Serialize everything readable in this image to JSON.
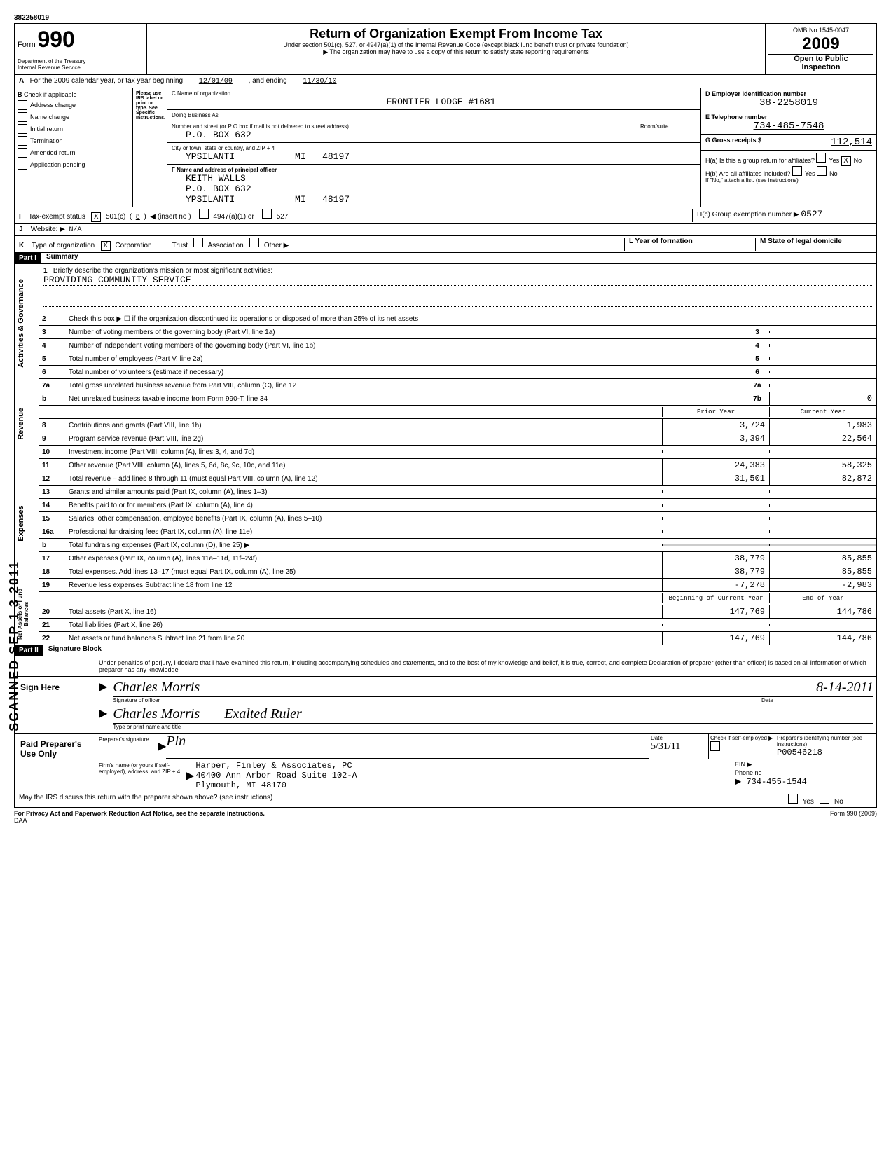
{
  "header": {
    "doc_id": "382258019",
    "form_prefix": "Form",
    "form_number": "990",
    "dept": "Department of the Treasury",
    "irs": "Internal Revenue Service",
    "title": "Return of Organization Exempt From Income Tax",
    "subtitle1": "Under section 501(c), 527, or 4947(a)(1) of the Internal Revenue Code (except black lung benefit trust or private foundation)",
    "subtitle2": "▶ The organization may have to use a copy of this return to satisfy state reporting requirements",
    "omb": "OMB No  1545-0047",
    "year": "2009",
    "open": "Open to Public",
    "inspection": "Inspection"
  },
  "row_a": {
    "label": "For the 2009 calendar year, or tax year beginning",
    "begin": "12/01/09",
    "mid": ", and ending",
    "end": "11/30/10"
  },
  "section_b": {
    "header": "Check if applicable",
    "please": "Please use IRS label or print or type. See Specific Instructions.",
    "items": [
      {
        "label": "Address change",
        "checked": false
      },
      {
        "label": "Name change",
        "checked": false
      },
      {
        "label": "Initial return",
        "checked": false
      },
      {
        "label": "Termination",
        "checked": false
      },
      {
        "label": "Amended return",
        "checked": false
      },
      {
        "label": "Application pending",
        "checked": false
      }
    ]
  },
  "section_c": {
    "name_label": "C  Name of organization",
    "name": "FRONTIER LODGE #1681",
    "dba_label": "Doing Business As",
    "dba": "",
    "street_label": "Number and street (or P O  box if mail is not delivered to street address)",
    "street": "P.O. BOX 632",
    "room_label": "Room/suite",
    "city_label": "City or town, state or country, and ZIP + 4",
    "city": "YPSILANTI",
    "state": "MI",
    "zip": "48197"
  },
  "section_f": {
    "label": "F  Name and address of principal officer",
    "name": "KEITH WALLS",
    "street": "P.O. BOX 632",
    "city": "YPSILANTI",
    "state": "MI",
    "zip": "48197"
  },
  "section_d": {
    "label": "D    Employer Identification number",
    "value": "38-2258019"
  },
  "section_e": {
    "label": "E    Telephone number",
    "value": "734-485-7548"
  },
  "section_g": {
    "label": "G Gross receipts $",
    "value": "112,514"
  },
  "section_h": {
    "ha_label": "H(a)  Is this a group return for affiliates?",
    "ha_yes": false,
    "ha_no": true,
    "hb_label": "H(b)  Are all affiliates included?",
    "hb_yes": false,
    "hb_no": false,
    "hb_note": "If \"No,\" attach a list. (see instructions)",
    "hc_label": "H(c)  Group exemption number ▶",
    "hc_value": "0527"
  },
  "row_i": {
    "label": "Tax-exempt status",
    "c501_checked": true,
    "c501_num": "8",
    "insert": "◀ (insert no )",
    "opt2": "4947(a)(1) or",
    "opt3": "527"
  },
  "row_j": {
    "label": "Website: ▶",
    "value": "N/A"
  },
  "row_k": {
    "label": "Type of organization",
    "corp_checked": true,
    "options": [
      "Corporation",
      "Trust",
      "Association",
      "Other ▶"
    ]
  },
  "row_l": {
    "label": "L    Year of formation",
    "value": ""
  },
  "row_m": {
    "label": "M  State of legal domicile",
    "value": ""
  },
  "part1": {
    "header": "Part I",
    "title": "Summary",
    "mission_label": "Briefly describe the organization's mission or most significant activities:",
    "mission": "PROVIDING COMMUNITY SERVICE",
    "line2": "Check this box ▶ ☐  if the organization discontinued its operations or disposed of more than 25% of its net assets",
    "governance_label": "Activities & Governance",
    "revenue_label": "Revenue",
    "expenses_label": "Expenses",
    "netassets_label": "Net Assets or Fund Balances",
    "lines": [
      {
        "num": "3",
        "text": "Number of voting members of the governing body (Part VI, line 1a)",
        "box": "3",
        "prior": "",
        "current": ""
      },
      {
        "num": "4",
        "text": "Number of independent voting members of the governing body (Part VI, line 1b)",
        "box": "4",
        "prior": "",
        "current": ""
      },
      {
        "num": "5",
        "text": "Total number of employees (Part V, line 2a)",
        "box": "5",
        "prior": "",
        "current": ""
      },
      {
        "num": "6",
        "text": "Total number of volunteers (estimate if necessary)",
        "box": "6",
        "prior": "",
        "current": ""
      },
      {
        "num": "7a",
        "text": "Total gross unrelated business revenue from Part VIII, column (C), line 12",
        "box": "7a",
        "prior": "",
        "current": ""
      },
      {
        "num": "b",
        "text": "Net unrelated business taxable income from Form 990-T, line 34",
        "box": "7b",
        "prior": "",
        "current": "0"
      }
    ],
    "col_prior": "Prior Year",
    "col_current": "Current Year",
    "revenue_lines": [
      {
        "num": "8",
        "text": "Contributions and grants (Part VIII, line 1h)",
        "prior": "3,724",
        "current": "1,983"
      },
      {
        "num": "9",
        "text": "Program service revenue (Part VIII, line 2g)",
        "prior": "3,394",
        "current": "22,564"
      },
      {
        "num": "10",
        "text": "Investment income (Part VIII, column (A), lines 3, 4, and 7d)",
        "prior": "",
        "current": ""
      },
      {
        "num": "11",
        "text": "Other revenue (Part VIII, column (A), lines 5, 6d, 8c, 9c, 10c, and 11e)",
        "prior": "24,383",
        "current": "58,325"
      },
      {
        "num": "12",
        "text": "Total revenue – add lines 8 through 11 (must equal Part VIII, column (A), line 12)",
        "prior": "31,501",
        "current": "82,872"
      }
    ],
    "expense_lines": [
      {
        "num": "13",
        "text": "Grants and similar amounts paid (Part IX, column (A), lines 1–3)",
        "prior": "",
        "current": ""
      },
      {
        "num": "14",
        "text": "Benefits paid to or for members (Part IX, column (A), line 4)",
        "prior": "",
        "current": ""
      },
      {
        "num": "15",
        "text": "Salaries, other compensation, employee benefits (Part IX, column (A), lines 5–10)",
        "prior": "",
        "current": ""
      },
      {
        "num": "16a",
        "text": "Professional fundraising fees (Part IX, column (A), line 11e)",
        "prior": "",
        "current": ""
      },
      {
        "num": "b",
        "text": "Total fundraising expenses (Part IX, column (D), line 25) ▶",
        "prior": "shaded",
        "current": "shaded"
      },
      {
        "num": "17",
        "text": "Other expenses (Part IX, column (A), lines 11a–11d, 11f–24f)",
        "prior": "38,779",
        "current": "85,855"
      },
      {
        "num": "18",
        "text": "Total expenses. Add lines 13–17 (must equal Part IX, column (A), line 25)",
        "prior": "38,779",
        "current": "85,855"
      },
      {
        "num": "19",
        "text": "Revenue less expenses  Subtract line 18 from line 12",
        "prior": "-7,278",
        "current": "-2,983"
      }
    ],
    "col_begin": "Beginning of Current Year",
    "col_end": "End of Year",
    "asset_lines": [
      {
        "num": "20",
        "text": "Total assets (Part X, line 16)",
        "prior": "147,769",
        "current": "144,786"
      },
      {
        "num": "21",
        "text": "Total liabilities (Part X, line 26)",
        "prior": "",
        "current": ""
      },
      {
        "num": "22",
        "text": "Net assets or fund balances  Subtract line 21 from line 20",
        "prior": "147,769",
        "current": "144,786"
      }
    ]
  },
  "part2": {
    "header": "Part II",
    "title": "Signature Block",
    "penalty": "Under penalties of perjury, I declare that I have examined this return, including accompanying schedules and statements, and to the best of my knowledge and belief, it is true, correct, and complete  Declaration of preparer (other than officer) is based on all information of which preparer has any knowledge",
    "sign_here": "Sign Here",
    "sig_officer": "Signature of officer",
    "sig_date_label": "Date",
    "sig_date": "8-14-2011",
    "type_name": "Type or print name and title",
    "printed_name": "Charles Morris",
    "printed_title": "Exalted Ruler",
    "paid": "Paid Preparer's Use Only",
    "prep_sig_label": "Preparer's signature",
    "prep_date": "5/31/11",
    "self_emp_label": "Check if self-employed ▶",
    "ptin_label": "Preparer's identifying number (see instructions)",
    "ptin": "P00546218",
    "firm_label": "Firm's name (or yours if self-employed), address, and ZIP + 4",
    "firm_name": "Harper, Finley & Associates, PC",
    "firm_street": "40400 Ann Arbor Road Suite 102-A",
    "firm_city": "Plymouth, MI  48170",
    "ein_label": "EIN ▶",
    "phone_label": "Phone no",
    "phone": "▶ 734-455-1544",
    "discuss": "May the IRS discuss this return with the preparer shown above? (see instructions)",
    "privacy": "For Privacy Act and Paperwork Reduction Act Notice, see the separate instructions.",
    "daa": "DAA",
    "form_footer": "Form 990 (2009)"
  },
  "stamp": {
    "scanned": "SCANNED SEP 1 3 2011"
  }
}
